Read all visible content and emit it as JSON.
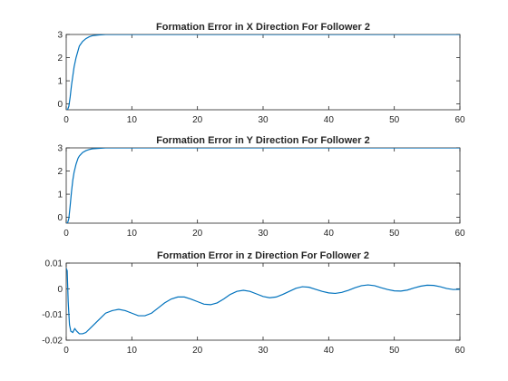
{
  "chart_data": [
    {
      "type": "line",
      "title": "Formation Error in X Direction For Follower 2",
      "xlabel": "",
      "ylabel": "",
      "xlim": [
        0,
        60
      ],
      "ylim": [
        -0.25,
        3
      ],
      "xticks": [
        0,
        10,
        20,
        30,
        40,
        50,
        60
      ],
      "xtick_labels": [
        "0",
        "10",
        "20",
        "30",
        "40",
        "50",
        "60"
      ],
      "yticks": [
        0,
        1,
        2,
        3
      ],
      "ytick_labels": [
        "0",
        "1",
        "2",
        "3"
      ],
      "grid": false,
      "series": [
        {
          "color": "#0072bd",
          "x": [
            0,
            0.2,
            0.4,
            0.6,
            0.8,
            1.0,
            1.2,
            1.5,
            1.8,
            2.0,
            2.5,
            3.0,
            3.5,
            4.0,
            5.0,
            6.0,
            8.0,
            10.0,
            60.0
          ],
          "y": [
            -0.25,
            -0.25,
            -0.1,
            0.3,
            0.8,
            1.2,
            1.6,
            2.0,
            2.3,
            2.5,
            2.7,
            2.82,
            2.9,
            2.95,
            2.98,
            3.0,
            3.0,
            3.0,
            3.0
          ]
        }
      ]
    },
    {
      "type": "line",
      "title": "Formation Error in Y Direction For Follower 2",
      "xlabel": "",
      "ylabel": "",
      "xlim": [
        0,
        60
      ],
      "ylim": [
        -0.25,
        3
      ],
      "xticks": [
        0,
        10,
        20,
        30,
        40,
        50,
        60
      ],
      "xtick_labels": [
        "0",
        "10",
        "20",
        "30",
        "40",
        "50",
        "60"
      ],
      "yticks": [
        0,
        1,
        2,
        3
      ],
      "ytick_labels": [
        "0",
        "1",
        "2",
        "3"
      ],
      "grid": false,
      "series": [
        {
          "color": "#0072bd",
          "x": [
            0,
            0.2,
            0.4,
            0.6,
            0.8,
            1.0,
            1.2,
            1.5,
            1.8,
            2.0,
            2.5,
            3.0,
            3.5,
            4.0,
            5.0,
            6.0,
            8.0,
            10.0,
            60.0
          ],
          "y": [
            -0.25,
            -0.25,
            -0.05,
            0.5,
            1.1,
            1.6,
            1.95,
            2.3,
            2.55,
            2.65,
            2.8,
            2.88,
            2.93,
            2.96,
            2.98,
            3.0,
            3.0,
            3.0,
            3.0
          ]
        }
      ]
    },
    {
      "type": "line",
      "title": "Formation Error in z Direction For Follower 2",
      "xlabel": "",
      "ylabel": "",
      "xlim": [
        0,
        60
      ],
      "ylim": [
        -0.02,
        0.01
      ],
      "xticks": [
        0,
        10,
        20,
        30,
        40,
        50,
        60
      ],
      "xtick_labels": [
        "0",
        "10",
        "20",
        "30",
        "40",
        "50",
        "60"
      ],
      "yticks": [
        -0.02,
        -0.01,
        0,
        0.01
      ],
      "ytick_labels": [
        "-0.02",
        "-0.01",
        "0",
        "0.01"
      ],
      "grid": false,
      "series": [
        {
          "color": "#0072bd",
          "x": [
            0,
            0.15,
            0.3,
            0.5,
            0.7,
            1.0,
            1.3,
            1.6,
            2.0,
            2.5,
            3.0,
            4.0,
            5.0,
            6.0,
            7.0,
            8.0,
            9.0,
            10.0,
            11.0,
            12.0,
            13.0,
            14.0,
            15.0,
            16.0,
            17.0,
            18.0,
            19.0,
            20.0,
            21.0,
            22.0,
            23.0,
            24.0,
            25.0,
            26.0,
            27.0,
            28.0,
            29.0,
            30.0,
            31.0,
            32.0,
            33.0,
            34.0,
            35.0,
            36.0,
            37.0,
            38.0,
            39.0,
            40.0,
            41.0,
            42.0,
            43.0,
            44.0,
            45.0,
            46.0,
            47.0,
            48.0,
            49.0,
            50.0,
            51.0,
            52.0,
            53.0,
            54.0,
            55.0,
            56.0,
            57.0,
            58.0,
            59.0,
            60.0
          ],
          "y": [
            0.008,
            0.007,
            -0.005,
            -0.014,
            -0.0165,
            -0.017,
            -0.0155,
            -0.0165,
            -0.0175,
            -0.0175,
            -0.017,
            -0.0145,
            -0.012,
            -0.0095,
            -0.0085,
            -0.008,
            -0.0085,
            -0.0095,
            -0.0105,
            -0.0105,
            -0.0095,
            -0.0075,
            -0.0055,
            -0.004,
            -0.0032,
            -0.0032,
            -0.004,
            -0.005,
            -0.006,
            -0.0062,
            -0.0055,
            -0.004,
            -0.0022,
            -0.001,
            -0.0006,
            -0.001,
            -0.002,
            -0.003,
            -0.0035,
            -0.0032,
            -0.0022,
            -0.001,
            0.0002,
            0.0008,
            0.0006,
            -0.0002,
            -0.001,
            -0.0016,
            -0.0018,
            -0.0014,
            -0.0006,
            0.0004,
            0.0012,
            0.0015,
            0.0012,
            0.0004,
            -0.0003,
            -0.0008,
            -0.0009,
            -0.0005,
            0.0003,
            0.001,
            0.0014,
            0.0013,
            0.0008,
            0.0001,
            -0.0003,
            -0.0002
          ]
        }
      ]
    }
  ]
}
